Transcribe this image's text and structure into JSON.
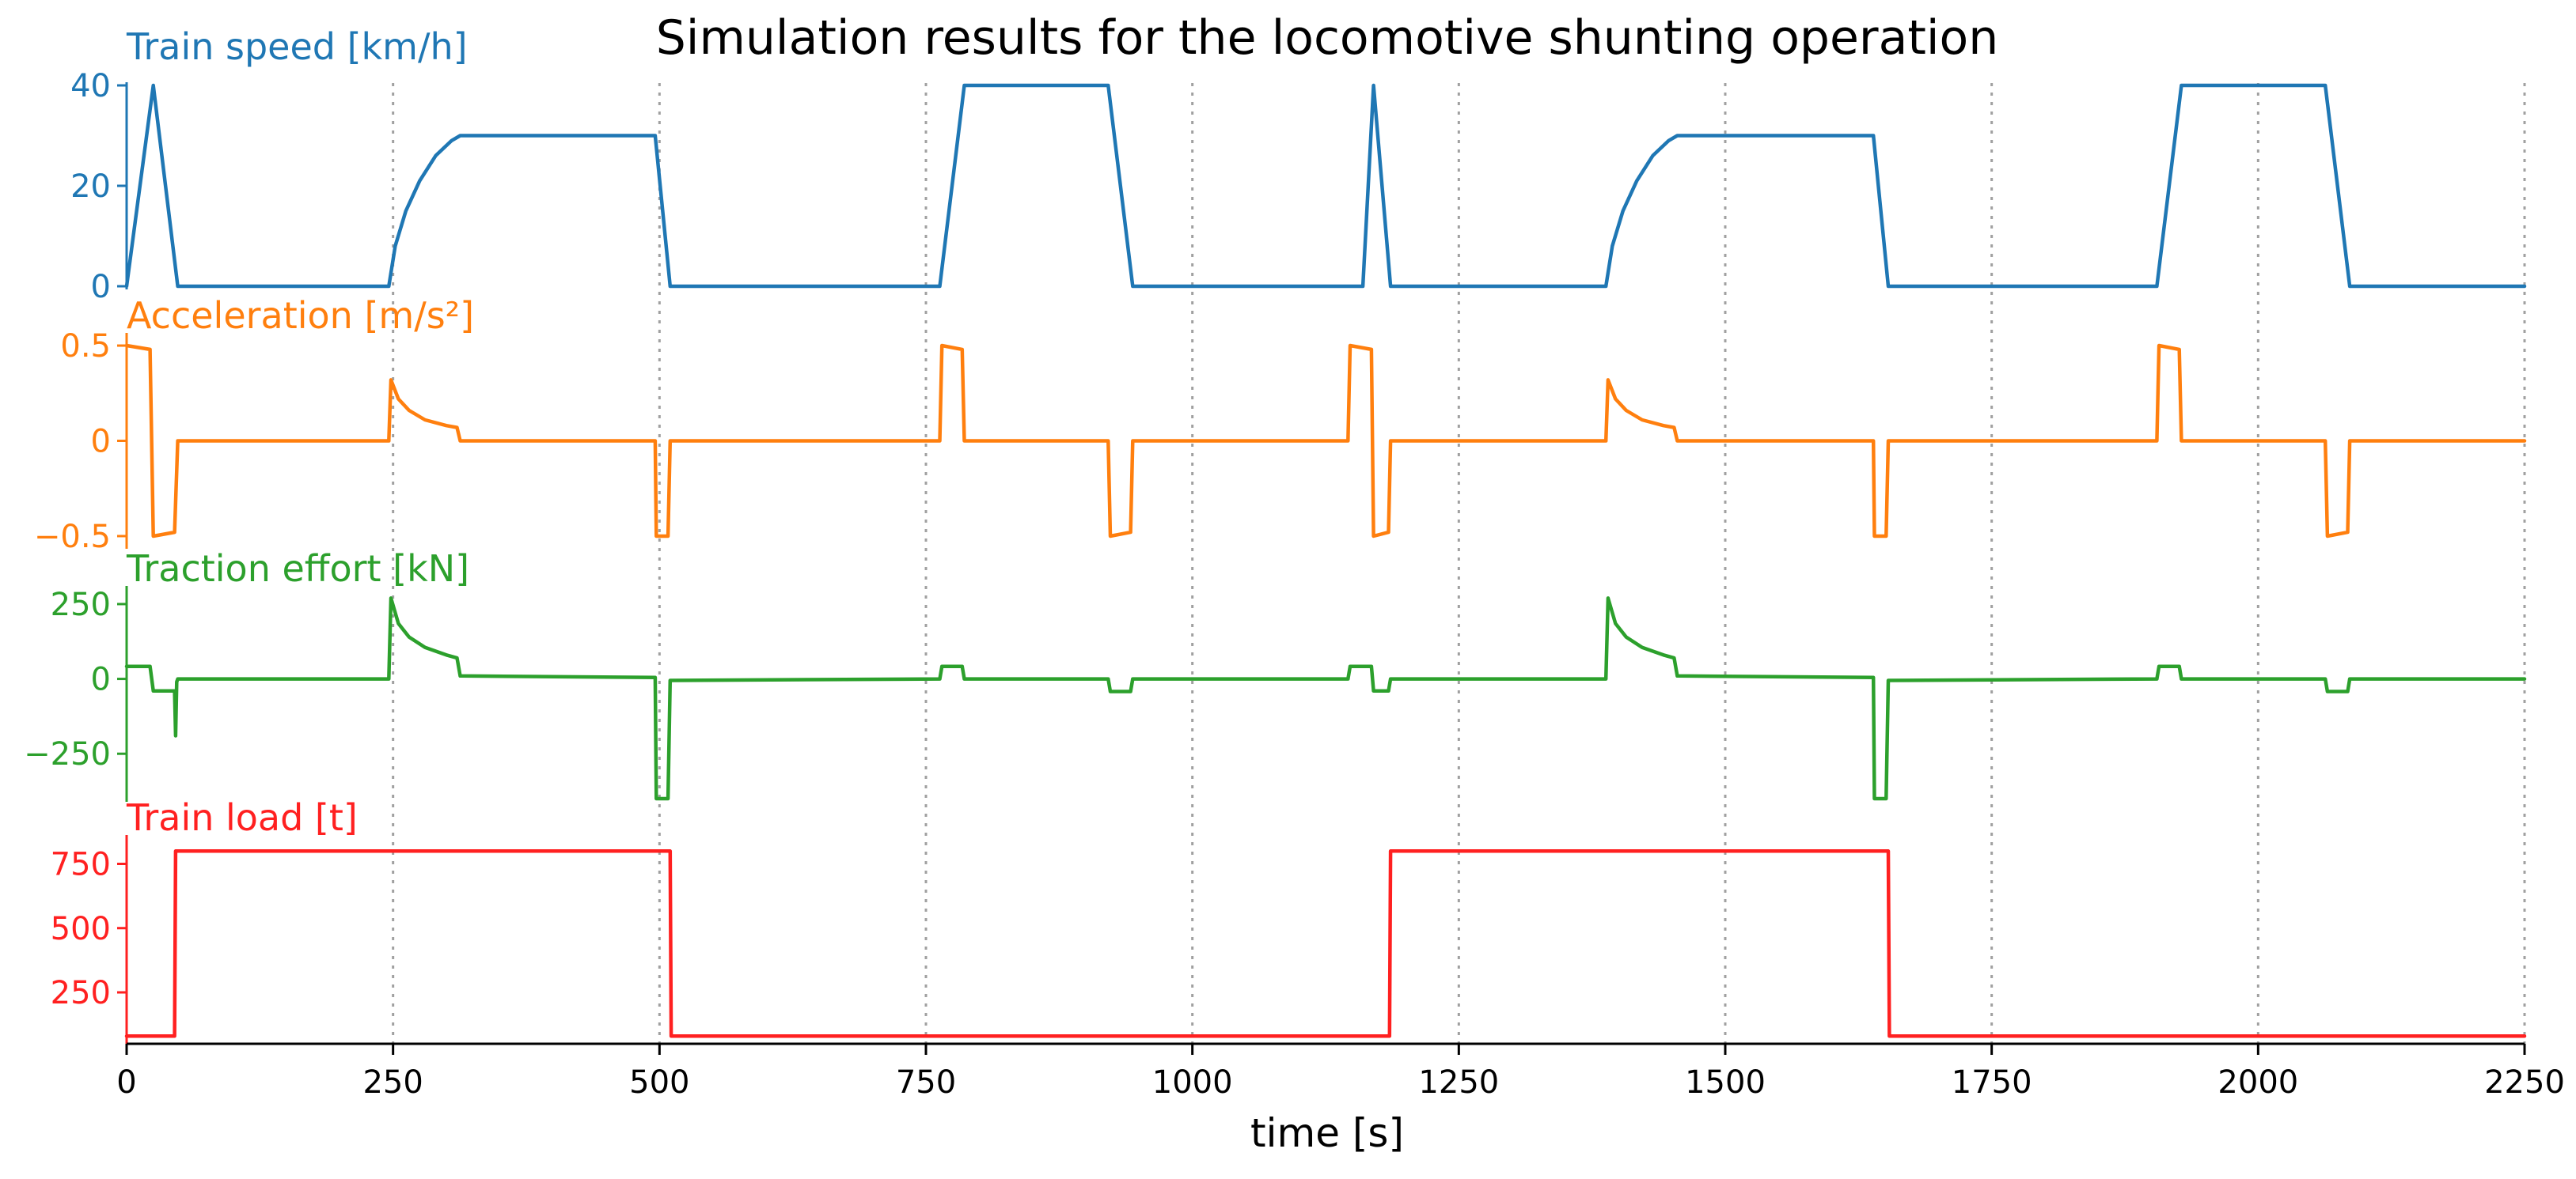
{
  "chart_data": {
    "type": "line",
    "title": "Simulation results for the locomotive shunting operation",
    "xlabel": "time [s]",
    "xlim": [
      0,
      2250
    ],
    "xticks": [
      0,
      250,
      500,
      750,
      1000,
      1250,
      1500,
      1750,
      2000,
      2250
    ],
    "vgrid": [
      250,
      500,
      750,
      1000,
      1250,
      1500,
      1750,
      2000,
      2250
    ],
    "grid_style": "vertical dotted gray lines",
    "colors": {
      "speed": "#1f77b4",
      "acceleration": "#ff7f0e",
      "traction": "#2ca02c",
      "load": "#ff2020",
      "grid": "#a0a0a0",
      "axis": "#000000"
    },
    "series": [
      {
        "name": "Train speed [km/h]",
        "key": "speed",
        "ylim": [
          0,
          40
        ],
        "yticks": [
          0,
          20,
          40
        ],
        "yticklabels": [
          "0",
          "20",
          "40"
        ],
        "points": [
          [
            0,
            0
          ],
          [
            25,
            40
          ],
          [
            48,
            0
          ],
          [
            246,
            0
          ],
          [
            252,
            8
          ],
          [
            262,
            15
          ],
          [
            275,
            21
          ],
          [
            290,
            26
          ],
          [
            305,
            29
          ],
          [
            313,
            30
          ],
          [
            496,
            30
          ],
          [
            510,
            0
          ],
          [
            763,
            0
          ],
          [
            786,
            40
          ],
          [
            921,
            40
          ],
          [
            944,
            0
          ],
          [
            1160,
            0
          ],
          [
            1170,
            40
          ],
          [
            1186,
            0
          ],
          [
            1388,
            0
          ],
          [
            1394,
            8
          ],
          [
            1404,
            15
          ],
          [
            1417,
            21
          ],
          [
            1432,
            26
          ],
          [
            1447,
            29
          ],
          [
            1455,
            30
          ],
          [
            1639,
            30
          ],
          [
            1653,
            0
          ],
          [
            1905,
            0
          ],
          [
            1928,
            40
          ],
          [
            2063,
            40
          ],
          [
            2086,
            0
          ],
          [
            2250,
            0
          ]
        ]
      },
      {
        "name": "Acceleration [m/s²]",
        "key": "acceleration",
        "ylim": [
          -0.55,
          0.55
        ],
        "yticks": [
          -0.5,
          0,
          0.5
        ],
        "yticklabels": [
          "−0.5",
          "0",
          "0.5"
        ],
        "points": [
          [
            0,
            0.5
          ],
          [
            22,
            0.48
          ],
          [
            25,
            -0.5
          ],
          [
            45,
            -0.48
          ],
          [
            48,
            0
          ],
          [
            246,
            0
          ],
          [
            248,
            0.32
          ],
          [
            255,
            0.22
          ],
          [
            265,
            0.16
          ],
          [
            280,
            0.11
          ],
          [
            300,
            0.08
          ],
          [
            310,
            0.07
          ],
          [
            313,
            0
          ],
          [
            496,
            0
          ],
          [
            497,
            -0.5
          ],
          [
            508,
            -0.5
          ],
          [
            510,
            0
          ],
          [
            763,
            0
          ],
          [
            765,
            0.5
          ],
          [
            784,
            0.48
          ],
          [
            786,
            0
          ],
          [
            921,
            0
          ],
          [
            923,
            -0.5
          ],
          [
            942,
            -0.48
          ],
          [
            944,
            0
          ],
          [
            1146,
            0
          ],
          [
            1148,
            0.5
          ],
          [
            1168,
            0.48
          ],
          [
            1170,
            -0.5
          ],
          [
            1184,
            -0.48
          ],
          [
            1186,
            0
          ],
          [
            1388,
            0
          ],
          [
            1390,
            0.32
          ],
          [
            1397,
            0.22
          ],
          [
            1407,
            0.16
          ],
          [
            1422,
            0.11
          ],
          [
            1442,
            0.08
          ],
          [
            1452,
            0.07
          ],
          [
            1455,
            0
          ],
          [
            1639,
            0
          ],
          [
            1640,
            -0.5
          ],
          [
            1651,
            -0.5
          ],
          [
            1653,
            0
          ],
          [
            1905,
            0
          ],
          [
            1907,
            0.5
          ],
          [
            1926,
            0.48
          ],
          [
            1928,
            0
          ],
          [
            2063,
            0
          ],
          [
            2065,
            -0.5
          ],
          [
            2084,
            -0.48
          ],
          [
            2086,
            0
          ],
          [
            2250,
            0
          ]
        ]
      },
      {
        "name": "Traction effort [kN]",
        "key": "traction",
        "ylim": [
          -400,
          300
        ],
        "yticks": [
          -250,
          0,
          250
        ],
        "yticklabels": [
          "−250",
          "0",
          "250"
        ],
        "points": [
          [
            0,
            42
          ],
          [
            22,
            42
          ],
          [
            25,
            -40
          ],
          [
            45,
            -40
          ],
          [
            46,
            -190
          ],
          [
            47,
            -10
          ],
          [
            48,
            0
          ],
          [
            246,
            0
          ],
          [
            248,
            270
          ],
          [
            255,
            185
          ],
          [
            265,
            140
          ],
          [
            280,
            105
          ],
          [
            300,
            80
          ],
          [
            310,
            70
          ],
          [
            313,
            10
          ],
          [
            496,
            5
          ],
          [
            497,
            -400
          ],
          [
            508,
            -400
          ],
          [
            510,
            -5
          ],
          [
            763,
            0
          ],
          [
            765,
            42
          ],
          [
            784,
            42
          ],
          [
            786,
            0
          ],
          [
            921,
            0
          ],
          [
            923,
            -42
          ],
          [
            942,
            -42
          ],
          [
            944,
            0
          ],
          [
            1146,
            0
          ],
          [
            1148,
            42
          ],
          [
            1168,
            42
          ],
          [
            1170,
            -40
          ],
          [
            1184,
            -40
          ],
          [
            1186,
            0
          ],
          [
            1388,
            0
          ],
          [
            1390,
            270
          ],
          [
            1397,
            185
          ],
          [
            1407,
            140
          ],
          [
            1422,
            105
          ],
          [
            1442,
            80
          ],
          [
            1452,
            70
          ],
          [
            1455,
            10
          ],
          [
            1639,
            5
          ],
          [
            1640,
            -400
          ],
          [
            1651,
            -400
          ],
          [
            1653,
            -5
          ],
          [
            1905,
            0
          ],
          [
            1907,
            42
          ],
          [
            1926,
            42
          ],
          [
            1928,
            0
          ],
          [
            2063,
            0
          ],
          [
            2065,
            -42
          ],
          [
            2084,
            -42
          ],
          [
            2086,
            0
          ],
          [
            2250,
            0
          ]
        ]
      },
      {
        "name": "Train load [t]",
        "key": "load",
        "ylim": [
          50,
          850
        ],
        "yticks": [
          250,
          500,
          750
        ],
        "yticklabels": [
          "250",
          "500",
          "750"
        ],
        "points": [
          [
            0,
            80
          ],
          [
            45,
            80
          ],
          [
            46,
            800
          ],
          [
            510,
            800
          ],
          [
            511,
            80
          ],
          [
            1185,
            80
          ],
          [
            1186,
            800
          ],
          [
            1653,
            800
          ],
          [
            1654,
            80
          ],
          [
            2250,
            80
          ]
        ]
      }
    ]
  }
}
